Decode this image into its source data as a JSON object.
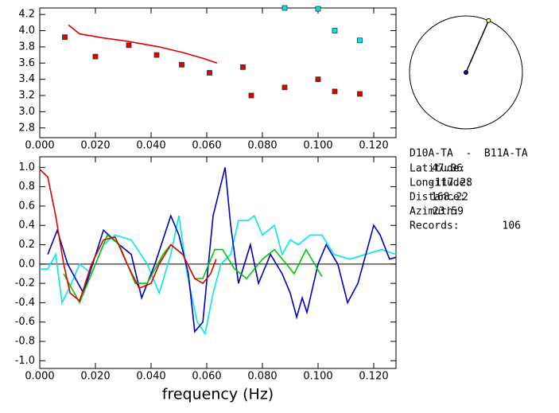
{
  "chart_data": [
    {
      "type": "scatter",
      "xlim": [
        0,
        0.128
      ],
      "ylim": [
        2.68,
        4.28
      ],
      "xticks": [
        {
          "value": 0,
          "label": "0.000"
        },
        {
          "value": 0.02,
          "label": "0.020"
        },
        {
          "value": 0.04,
          "label": "0.040"
        },
        {
          "value": 0.06,
          "label": "0.060"
        },
        {
          "value": 0.08,
          "label": "0.080"
        },
        {
          "value": 0.1,
          "label": "0.100"
        },
        {
          "value": 0.12,
          "label": "0.120"
        }
      ],
      "yticks": [
        2.8,
        {
          "value": 3,
          "label": "3.0"
        },
        3.2,
        3.4,
        3.6,
        3.8,
        {
          "value": 4,
          "label": "4.0"
        },
        4.2
      ],
      "series": [
        {
          "style": "markers",
          "color": "#e00000",
          "x": [
            0.009,
            0.02,
            0.032,
            0.042,
            0.051,
            0.061,
            0.073,
            0.076,
            0.088,
            0.1,
            0.106,
            0.115
          ],
          "values": [
            3.92,
            3.68,
            3.82,
            3.7,
            3.58,
            3.48,
            3.55,
            3.2,
            3.3,
            3.4,
            3.25,
            3.22
          ]
        },
        {
          "style": "markers",
          "color": "#00e8e8",
          "x": [
            0.088,
            0.1,
            0.106,
            0.115
          ],
          "values": [
            4.28,
            4.27,
            4.0,
            3.88
          ]
        },
        {
          "style": "line",
          "color": "#e00000",
          "x": [
            0.0103,
            0.0143,
            0.0229,
            0.0314,
            0.0429,
            0.0514,
            0.0586,
            0.0637
          ],
          "values": [
            4.07,
            3.96,
            3.91,
            3.87,
            3.8,
            3.73,
            3.66,
            3.6
          ]
        }
      ]
    },
    {
      "type": "line",
      "xlabel": "frequency (Hz)",
      "xlim": [
        0,
        0.128
      ],
      "ylim": [
        -1.08,
        1.11
      ],
      "xticks": [
        {
          "value": 0,
          "label": "0.000"
        },
        {
          "value": 0.02,
          "label": "0.020"
        },
        {
          "value": 0.04,
          "label": "0.040"
        },
        {
          "value": 0.06,
          "label": "0.060"
        },
        {
          "value": 0.08,
          "label": "0.080"
        },
        {
          "value": 0.1,
          "label": "0.100"
        },
        {
          "value": 0.12,
          "label": "0.120"
        }
      ],
      "yticks": [
        {
          "value": -1,
          "label": "-1.0"
        },
        -0.8,
        -0.6,
        -0.4,
        -0.2,
        {
          "value": 0,
          "label": "0.0"
        },
        0.2,
        0.4,
        0.6,
        0.8,
        {
          "value": 1,
          "label": "1.0"
        }
      ],
      "reference_line": 0,
      "series": [
        {
          "color": "#00e8e8",
          "x": [
            0,
            0.0029,
            0.0057,
            0.008,
            0.0114,
            0.0143,
            0.0186,
            0.0229,
            0.0271,
            0.0329,
            0.0386,
            0.0429,
            0.0471,
            0.05,
            0.0529,
            0.0566,
            0.0594,
            0.0623,
            0.0651,
            0.0686,
            0.0714,
            0.0749,
            0.0771,
            0.08,
            0.0843,
            0.0871,
            0.09,
            0.0929,
            0.0971,
            0.1014,
            0.1057,
            0.1114,
            0.1171,
            0.1229,
            0.128
          ],
          "values": [
            -0.05,
            -0.05,
            0.1,
            -0.4,
            -0.2,
            0.0,
            -0.1,
            0.2,
            0.3,
            0.25,
            0.0,
            -0.3,
            0.1,
            0.5,
            -0.1,
            -0.6,
            -0.72,
            -0.3,
            0.0,
            0.1,
            0.45,
            0.45,
            0.5,
            0.3,
            0.4,
            0.1,
            0.25,
            0.2,
            0.3,
            0.3,
            0.1,
            0.05,
            0.1,
            0.15,
            0.1
          ]
        },
        {
          "color": "#0000c0",
          "x": [
            0.0029,
            0.0063,
            0.01,
            0.0157,
            0.0229,
            0.0286,
            0.0329,
            0.0366,
            0.0414,
            0.0471,
            0.05,
            0.0534,
            0.0557,
            0.0586,
            0.0606,
            0.0623,
            0.0666,
            0.0686,
            0.0714,
            0.0757,
            0.0786,
            0.0829,
            0.0871,
            0.09,
            0.0923,
            0.0943,
            0.096,
            0.1,
            0.1029,
            0.1071,
            0.1106,
            0.1143,
            0.12,
            0.1223,
            0.1257,
            0.128
          ],
          "values": [
            0.1,
            0.35,
            0.0,
            -0.3,
            0.35,
            0.2,
            0.1,
            -0.35,
            0.0,
            0.5,
            0.3,
            -0.1,
            -0.7,
            -0.6,
            0.0,
            0.5,
            1.0,
            0.4,
            -0.2,
            0.2,
            -0.2,
            0.1,
            -0.1,
            -0.3,
            -0.55,
            -0.35,
            -0.5,
            0.0,
            0.2,
            0.0,
            -0.4,
            -0.2,
            0.4,
            0.3,
            0.05,
            0.07
          ]
        },
        {
          "color": "#00c800",
          "x": [
            0.0086,
            0.0143,
            0.0186,
            0.0243,
            0.0286,
            0.0343,
            0.0386,
            0.0443,
            0.0471,
            0.0514,
            0.0557,
            0.0586,
            0.0629,
            0.0657,
            0.07,
            0.0743,
            0.08,
            0.0843,
            0.0886,
            0.0914,
            0.0957,
            0.1014
          ],
          "values": [
            -0.1,
            -0.4,
            -0.1,
            0.3,
            0.2,
            -0.2,
            -0.2,
            0.1,
            0.2,
            0.1,
            -0.15,
            -0.15,
            0.15,
            0.15,
            -0.05,
            -0.15,
            0.05,
            0.15,
            0.0,
            -0.1,
            0.15,
            -0.13
          ]
        },
        {
          "color": "#e00000",
          "x": [
            0,
            0.0029,
            0.0057,
            0.0086,
            0.0109,
            0.0143,
            0.0186,
            0.0229,
            0.0271,
            0.0314,
            0.0357,
            0.04,
            0.0429,
            0.0471,
            0.0514,
            0.0557,
            0.0586,
            0.0614,
            0.0634
          ],
          "values": [
            0.98,
            0.9,
            0.5,
            0.0,
            -0.3,
            -0.38,
            0.0,
            0.25,
            0.28,
            0.0,
            -0.25,
            -0.2,
            0.0,
            0.2,
            0.1,
            -0.15,
            -0.2,
            -0.1,
            0.05
          ]
        }
      ]
    }
  ],
  "info": {
    "title": "D10A-TA  -  B11A-TA",
    "rows": [
      {
        "label": "Latitude:",
        "value": 47.06
      },
      {
        "label": "Longitude:",
        "value": -117.28
      },
      {
        "label": "Distance:",
        "value": 168.22
      },
      {
        "label": "Azimuth:",
        "value": 23.59
      },
      {
        "label": "Records:",
        "value": 106
      }
    ]
  }
}
